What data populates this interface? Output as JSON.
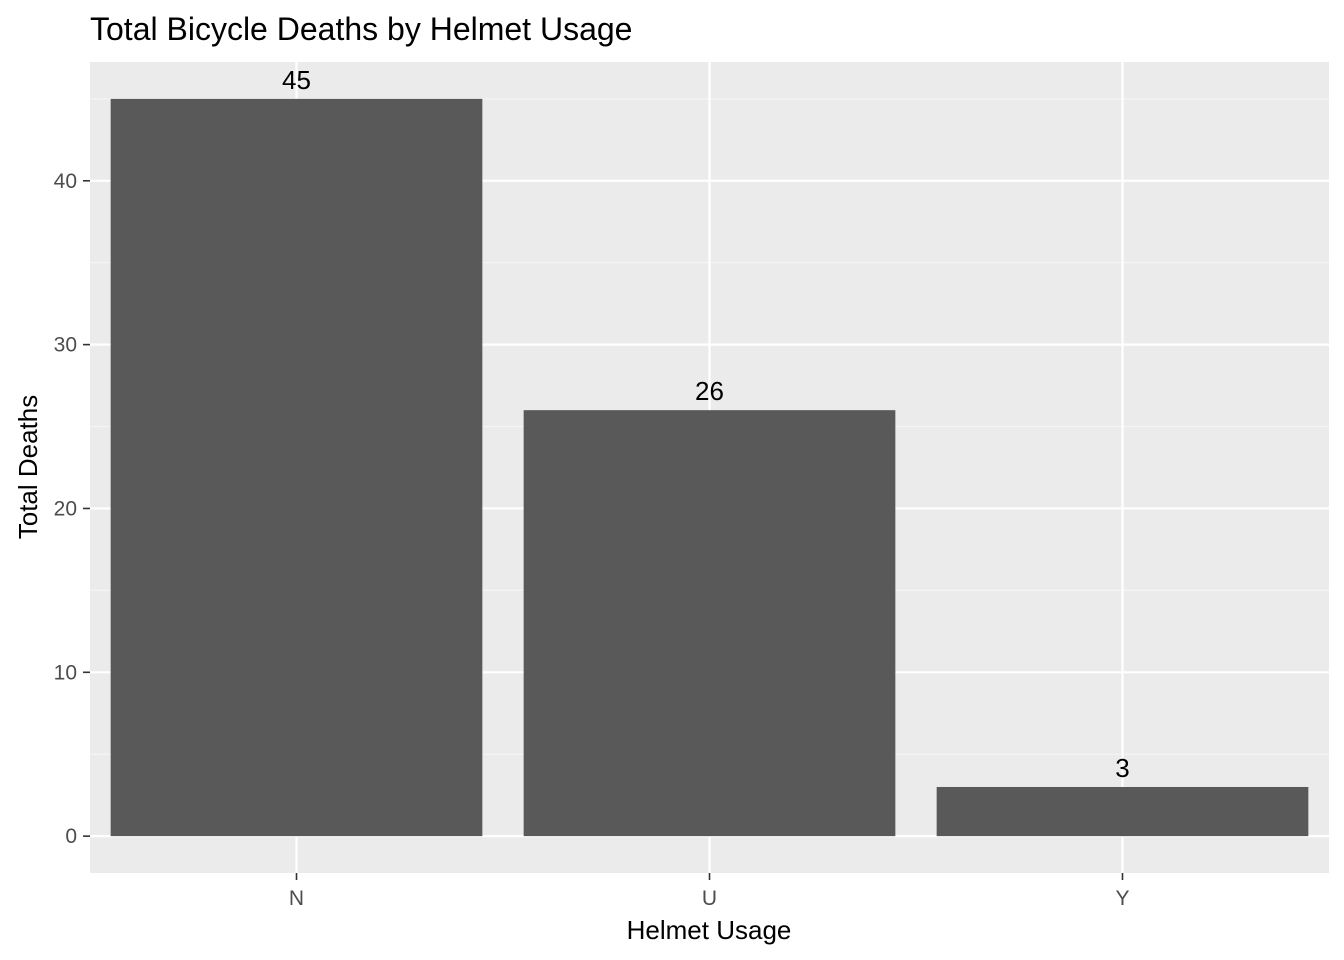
{
  "chart_data": {
    "type": "bar",
    "title": "Total Bicycle Deaths by Helmet Usage",
    "xlabel": "Helmet Usage",
    "ylabel": "Total Deaths",
    "categories": [
      "N",
      "U",
      "Y"
    ],
    "values": [
      45,
      26,
      3
    ],
    "data_labels": [
      "45",
      "26",
      "3"
    ],
    "yticks": [
      0,
      10,
      20,
      30,
      40
    ],
    "ytick_labels": [
      "0",
      "10",
      "20",
      "30",
      "40"
    ],
    "ylim": [
      -2.25,
      47.25
    ],
    "grid": true,
    "legend": "none",
    "colors": {
      "bar": "#595959",
      "panel_background": "#ebebeb",
      "grid_major": "#ffffff",
      "grid_minor": "#f5f5f5",
      "tick_color": "#333333"
    }
  }
}
